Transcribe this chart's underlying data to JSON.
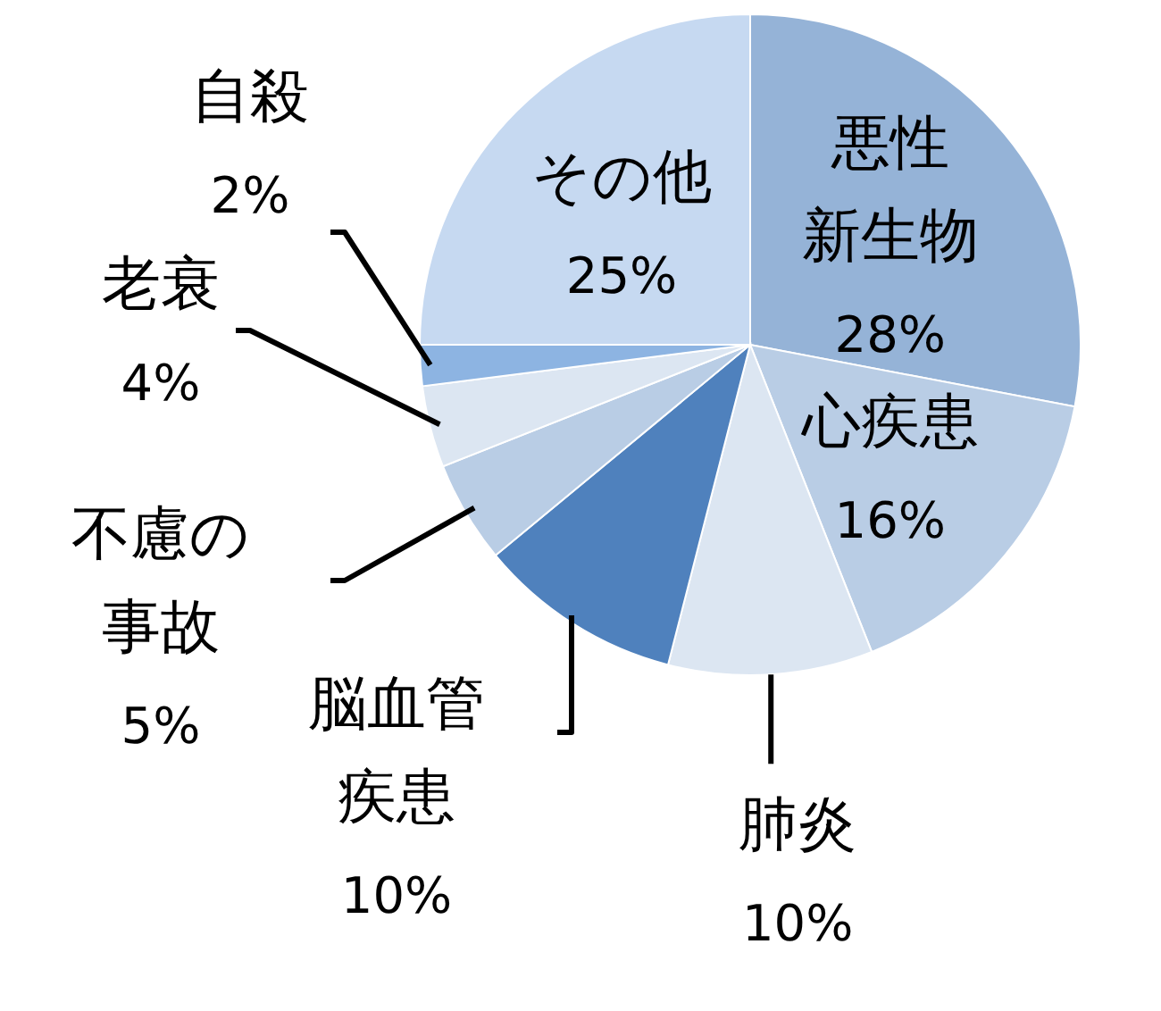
{
  "chart_data": {
    "type": "pie",
    "categories": [
      "悪性新生物",
      "心疾患",
      "肺炎",
      "脳血管疾患",
      "不慮の事故",
      "老衰",
      "自殺",
      "その他"
    ],
    "values": [
      28,
      16,
      10,
      10,
      5,
      4,
      2,
      25
    ],
    "value_labels": [
      "28%",
      "16%",
      "10%",
      "10%",
      "5%",
      "4%",
      "2%",
      "25%"
    ],
    "colors": [
      "#95b3d7",
      "#b9cde5",
      "#dce6f2",
      "#4f81bd",
      "#b9cde5",
      "#dce6f2",
      "#8db4e2",
      "#c6d9f1"
    ]
  }
}
